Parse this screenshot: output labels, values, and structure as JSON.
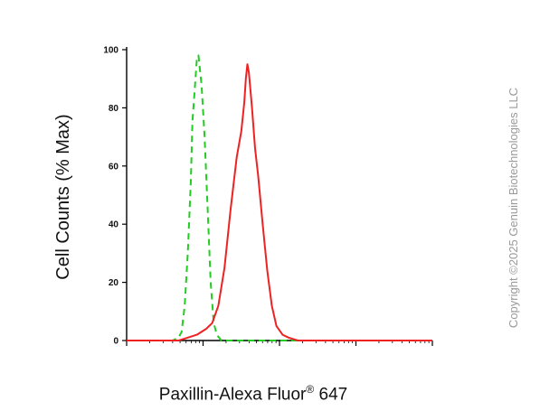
{
  "chart_data": {
    "type": "line",
    "xlabel": "Paxillin-Alexa Fluor",
    "xlabel_sup": "®",
    "xlabel_suffix": " 647",
    "ylabel": "Cell Counts (% Max)",
    "ylim": [
      0,
      100
    ],
    "y_ticks": [
      "0",
      "20",
      "40",
      "60",
      "80",
      "100"
    ],
    "x_scale": "log (fluorescence intensity, unlabeled)",
    "grid": false,
    "series": [
      {
        "style": "dashed",
        "color": "#22cc22",
        "points": [
          [
            0.0,
            0
          ],
          [
            0.15,
            0
          ],
          [
            0.17,
            1
          ],
          [
            0.18,
            3
          ],
          [
            0.19,
            12
          ],
          [
            0.2,
            30
          ],
          [
            0.21,
            55
          ],
          [
            0.215,
            75
          ],
          [
            0.225,
            90
          ],
          [
            0.23,
            97
          ],
          [
            0.235,
            98
          ],
          [
            0.245,
            88
          ],
          [
            0.255,
            70
          ],
          [
            0.265,
            45
          ],
          [
            0.275,
            20
          ],
          [
            0.285,
            6
          ],
          [
            0.295,
            2
          ],
          [
            0.31,
            0
          ],
          [
            0.45,
            0
          ],
          [
            1.0,
            0
          ]
        ]
      },
      {
        "style": "solid",
        "color": "#ee2222",
        "points": [
          [
            0.0,
            0
          ],
          [
            0.17,
            0
          ],
          [
            0.2,
            1
          ],
          [
            0.23,
            2
          ],
          [
            0.26,
            4
          ],
          [
            0.28,
            6
          ],
          [
            0.3,
            12
          ],
          [
            0.32,
            25
          ],
          [
            0.34,
            45
          ],
          [
            0.36,
            63
          ],
          [
            0.375,
            72
          ],
          [
            0.385,
            82
          ],
          [
            0.39,
            90
          ],
          [
            0.395,
            95
          ],
          [
            0.4,
            92
          ],
          [
            0.41,
            80
          ],
          [
            0.42,
            66
          ],
          [
            0.43,
            57
          ],
          [
            0.445,
            40
          ],
          [
            0.46,
            24
          ],
          [
            0.475,
            12
          ],
          [
            0.49,
            5
          ],
          [
            0.51,
            2
          ],
          [
            0.53,
            1
          ],
          [
            0.56,
            0
          ],
          [
            1.0,
            0
          ]
        ]
      }
    ]
  },
  "copyright": "Copyright ©2025 Genuin Biotechnologies LLC"
}
